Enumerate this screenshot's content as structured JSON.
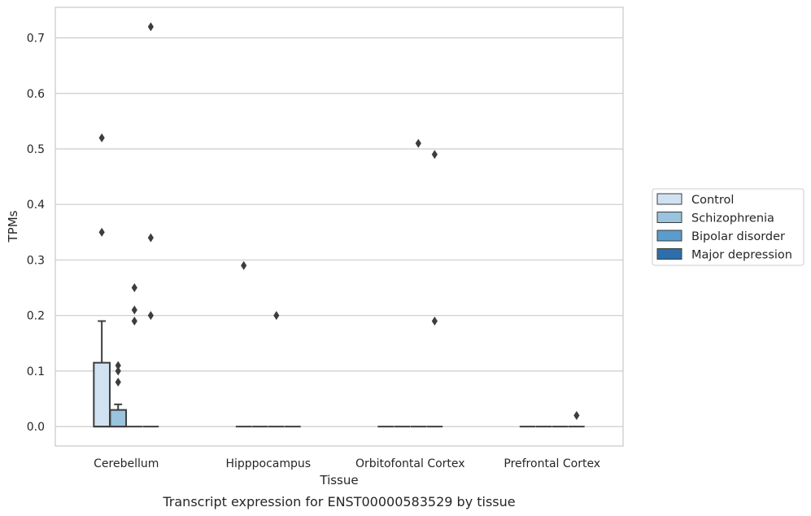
{
  "caption": "Transcript expression for ENST00000583529 by tissue",
  "chart_data": {
    "type": "box",
    "xlabel": "Tissue",
    "ylabel": "TPMs",
    "ylim": [
      -0.035,
      0.755
    ],
    "yticks": [
      "0.0",
      "0.1",
      "0.2",
      "0.3",
      "0.4",
      "0.5",
      "0.6",
      "0.7"
    ],
    "categories": [
      "Cerebellum",
      "Hipppocampus",
      "Orbitofontal Cortex",
      "Prefrontal Cortex"
    ],
    "grid": "horizontal",
    "legend_placement": "center-right",
    "series": [
      {
        "name": "Control",
        "color": "#d0e1f2",
        "boxes": [
          {
            "q1": 0,
            "median": 0,
            "q3": 0.115,
            "whisker_low": 0,
            "whisker_high": 0.19,
            "outliers": [
              0.52,
              0.35
            ]
          },
          {
            "q1": 0,
            "median": 0,
            "q3": 0,
            "whisker_low": 0,
            "whisker_high": 0,
            "outliers": [
              0.29
            ]
          },
          {
            "q1": 0,
            "median": 0,
            "q3": 0,
            "whisker_low": 0,
            "whisker_high": 0,
            "outliers": []
          },
          {
            "q1": 0,
            "median": 0,
            "q3": 0,
            "whisker_low": 0,
            "whisker_high": 0,
            "outliers": []
          }
        ]
      },
      {
        "name": "Schizophrenia",
        "color": "#9ac3dd",
        "boxes": [
          {
            "q1": 0,
            "median": 0,
            "q3": 0.03,
            "whisker_low": 0,
            "whisker_high": 0.04,
            "outliers": [
              0.11,
              0.1,
              0.08
            ]
          },
          {
            "q1": 0,
            "median": 0,
            "q3": 0,
            "whisker_low": 0,
            "whisker_high": 0,
            "outliers": []
          },
          {
            "q1": 0,
            "median": 0,
            "q3": 0,
            "whisker_low": 0,
            "whisker_high": 0,
            "outliers": []
          },
          {
            "q1": 0,
            "median": 0,
            "q3": 0,
            "whisker_low": 0,
            "whisker_high": 0,
            "outliers": []
          }
        ]
      },
      {
        "name": "Bipolar disorder",
        "color": "#5b9ccc",
        "boxes": [
          {
            "q1": 0,
            "median": 0,
            "q3": 0,
            "whisker_low": 0,
            "whisker_high": 0,
            "outliers": [
              0.25,
              0.21,
              0.19
            ]
          },
          {
            "q1": 0,
            "median": 0,
            "q3": 0,
            "whisker_low": 0,
            "whisker_high": 0,
            "outliers": [
              0.2
            ]
          },
          {
            "q1": 0,
            "median": 0,
            "q3": 0,
            "whisker_low": 0,
            "whisker_high": 0,
            "outliers": [
              0.51
            ]
          },
          {
            "q1": 0,
            "median": 0,
            "q3": 0,
            "whisker_low": 0,
            "whisker_high": 0,
            "outliers": []
          }
        ]
      },
      {
        "name": "Major depression",
        "color": "#2d6eab",
        "boxes": [
          {
            "q1": 0,
            "median": 0,
            "q3": 0,
            "whisker_low": 0,
            "whisker_high": 0,
            "outliers": [
              0.72,
              0.34,
              0.2
            ]
          },
          {
            "q1": 0,
            "median": 0,
            "q3": 0,
            "whisker_low": 0,
            "whisker_high": 0,
            "outliers": []
          },
          {
            "q1": 0,
            "median": 0,
            "q3": 0,
            "whisker_low": 0,
            "whisker_high": 0,
            "outliers": [
              0.49,
              0.19
            ]
          },
          {
            "q1": 0,
            "median": 0,
            "q3": 0,
            "whisker_low": 0,
            "whisker_high": 0,
            "outliers": [
              0.02
            ]
          }
        ]
      }
    ]
  }
}
